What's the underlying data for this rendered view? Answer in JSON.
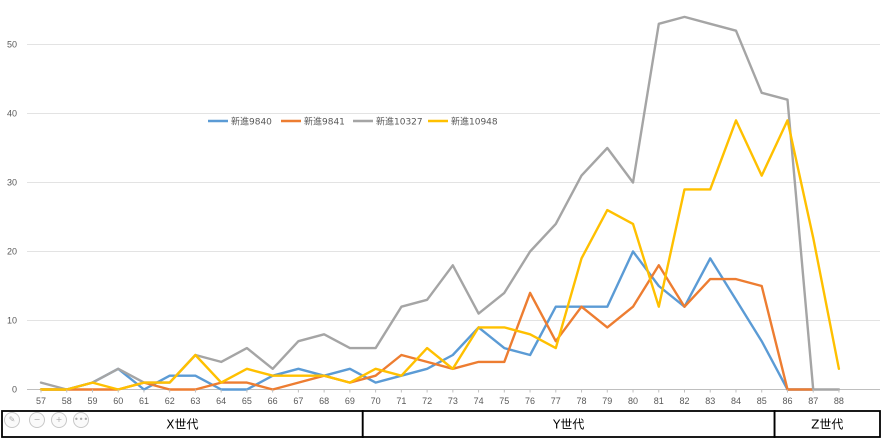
{
  "chart_data": {
    "type": "line",
    "title": "",
    "xlabel": "",
    "ylabel": "",
    "ylim": [
      0,
      55
    ],
    "yticks": [
      0,
      10,
      20,
      30,
      40,
      50
    ],
    "grid": "horizontal",
    "legend_position": "top-left inside plot",
    "categories": [
      "57",
      "58",
      "59",
      "60",
      "61",
      "62",
      "63",
      "64",
      "65",
      "66",
      "67",
      "68",
      "69",
      "70",
      "71",
      "72",
      "73",
      "74",
      "75",
      "76",
      "77",
      "78",
      "79",
      "80",
      "81",
      "82",
      "83",
      "84",
      "85",
      "86",
      "87",
      "88"
    ],
    "series": [
      {
        "name": "新進9840",
        "color": "#5b9bd5",
        "values": [
          0,
          0,
          1,
          3,
          0,
          2,
          2,
          0,
          0,
          2,
          3,
          2,
          3,
          1,
          2,
          3,
          5,
          9,
          6,
          5,
          12,
          12,
          12,
          20,
          15,
          12,
          19,
          13,
          7,
          0,
          0,
          null
        ]
      },
      {
        "name": "新進9841",
        "color": "#ed7d31",
        "values": [
          0,
          0,
          0,
          0,
          1,
          0,
          0,
          1,
          1,
          0,
          1,
          2,
          1,
          2,
          5,
          4,
          3,
          4,
          4,
          14,
          7,
          12,
          9,
          12,
          18,
          12,
          16,
          16,
          15,
          0,
          0,
          null
        ]
      },
      {
        "name": "新進10327",
        "color": "#a5a5a5",
        "values": [
          1,
          0,
          1,
          3,
          1,
          1,
          5,
          4,
          6,
          3,
          7,
          8,
          6,
          6,
          12,
          13,
          18,
          11,
          14,
          20,
          24,
          31,
          35,
          30,
          53,
          54,
          53,
          52,
          43,
          42,
          0,
          0
        ]
      },
      {
        "name": "新進10948",
        "color": "#ffc000",
        "values": [
          0,
          0,
          1,
          0,
          1,
          1,
          5,
          1,
          3,
          2,
          2,
          2,
          1,
          3,
          2,
          6,
          3,
          9,
          9,
          8,
          6,
          19,
          26,
          24,
          12,
          29,
          29,
          39,
          31,
          39,
          22,
          3
        ]
      }
    ],
    "generations": [
      {
        "label": "X世代",
        "from": "57",
        "to": "69"
      },
      {
        "label": "Y世代",
        "from": "70",
        "to": "85"
      },
      {
        "label": "Z世代",
        "from": "86",
        "to": "88"
      }
    ]
  },
  "toolbar": {
    "icons": [
      "pen-icon",
      "zoom-out-icon",
      "zoom-in-icon",
      "more-icon"
    ],
    "more_label": "•••"
  }
}
